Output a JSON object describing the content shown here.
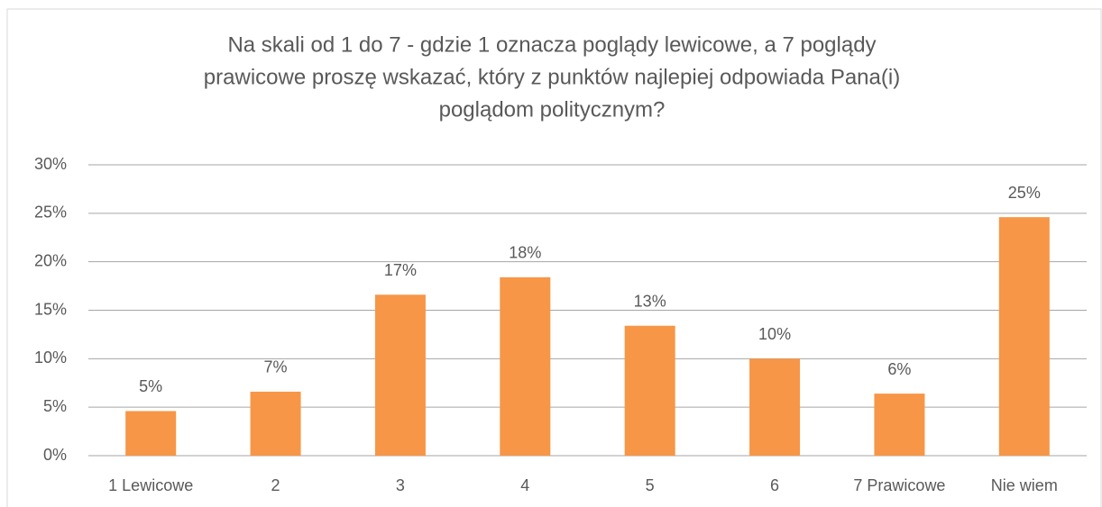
{
  "chart_data": {
    "type": "bar",
    "title": [
      "Na skali od 1 do 7 - gdzie 1 oznacza poglądy lewicowe, a 7 poglądy",
      "prawicowe proszę wskazać, który z punktów najlepiej odpowiada Pana(i)",
      "poglądom politycznym?"
    ],
    "categories": [
      "1 Lewicowe",
      "2",
      "3",
      "4",
      "5",
      "6",
      "7 Prawicowe",
      "Nie wiem"
    ],
    "values": [
      4.6,
      6.6,
      16.6,
      18.4,
      13.4,
      10.0,
      6.4,
      24.6
    ],
    "value_labels": [
      "5%",
      "7%",
      "17%",
      "18%",
      "13%",
      "10%",
      "6%",
      "25%"
    ],
    "color": "#f79646",
    "ylim": [
      0,
      30
    ],
    "yticks": [
      {
        "value": 0,
        "label": "0%"
      },
      {
        "value": 5,
        "label": "5%"
      },
      {
        "value": 10,
        "label": "10%"
      },
      {
        "value": 15,
        "label": "15%"
      },
      {
        "value": 20,
        "label": "20%"
      },
      {
        "value": 25,
        "label": "25%"
      },
      {
        "value": 30,
        "label": "30%"
      }
    ],
    "grid": true
  }
}
